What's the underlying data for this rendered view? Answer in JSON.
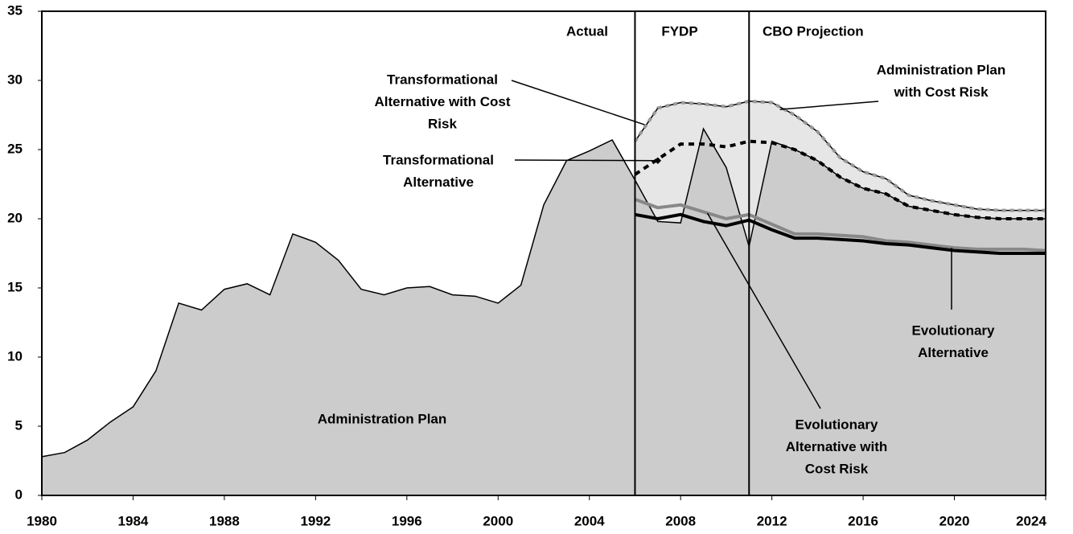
{
  "chart_data": {
    "type": "area-line",
    "x": [
      1980,
      1981,
      1982,
      1983,
      1984,
      1985,
      1986,
      1987,
      1988,
      1989,
      1990,
      1991,
      1992,
      1993,
      1994,
      1995,
      1996,
      1997,
      1998,
      1999,
      2000,
      2001,
      2002,
      2003,
      2004,
      2005,
      2006,
      2007,
      2008,
      2009,
      2010,
      2011,
      2012,
      2013,
      2014,
      2015,
      2016,
      2017,
      2018,
      2019,
      2020,
      2021,
      2022,
      2023,
      2024
    ],
    "series": [
      {
        "name": "Administration Plan",
        "color": "#cccccc",
        "style": "area",
        "values": [
          2.8,
          3.1,
          4.0,
          5.3,
          6.4,
          9.0,
          13.9,
          13.4,
          14.9,
          15.3,
          14.5,
          18.9,
          18.3,
          17.0,
          14.9,
          14.5,
          15.0,
          15.1,
          14.5,
          14.4,
          13.9,
          15.2,
          21.0,
          24.2,
          24.9,
          25.7,
          22.8,
          19.8,
          19.7,
          26.5,
          23.7,
          18.0,
          25.6,
          25.0,
          24.2,
          23.0,
          22.2,
          21.8,
          20.9,
          20.6,
          20.3,
          20.1,
          20.0,
          20.0,
          20.0
        ]
      },
      {
        "name": "Administration Plan with Cost Risk",
        "color": "#999999",
        "style": "dotted-fill",
        "values": [
          null,
          null,
          null,
          null,
          null,
          null,
          null,
          null,
          null,
          null,
          null,
          null,
          null,
          null,
          null,
          null,
          null,
          null,
          null,
          null,
          null,
          null,
          null,
          null,
          null,
          null,
          25.6,
          28.0,
          28.4,
          28.3,
          28.1,
          28.5,
          28.4,
          27.5,
          26.3,
          24.4,
          23.4,
          22.9,
          21.7,
          21.3,
          21.0,
          20.7,
          20.6,
          20.6,
          20.6
        ]
      },
      {
        "name": "Transformational Alternative",
        "color": "#000000",
        "style": "dashed",
        "values": [
          null,
          null,
          null,
          null,
          null,
          null,
          null,
          null,
          null,
          null,
          null,
          null,
          null,
          null,
          null,
          null,
          null,
          null,
          null,
          null,
          null,
          null,
          null,
          null,
          null,
          null,
          23.2,
          24.3,
          25.4,
          25.4,
          25.2,
          25.6,
          25.5,
          25.0,
          24.2,
          23.0,
          22.2,
          21.8,
          20.9,
          20.6,
          20.3,
          20.1,
          20.0,
          20.0,
          20.0
        ]
      },
      {
        "name": "Evolutionary Alternative with Cost Risk",
        "color": "#888888",
        "style": "thick",
        "values": [
          null,
          null,
          null,
          null,
          null,
          null,
          null,
          null,
          null,
          null,
          null,
          null,
          null,
          null,
          null,
          null,
          null,
          null,
          null,
          null,
          null,
          null,
          null,
          null,
          null,
          null,
          21.4,
          20.8,
          21.0,
          20.5,
          20.0,
          20.3,
          19.6,
          18.9,
          18.9,
          18.8,
          18.7,
          18.4,
          18.3,
          18.1,
          17.9,
          17.8,
          17.8,
          17.8,
          17.7
        ]
      },
      {
        "name": "Evolutionary Alternative",
        "color": "#000000",
        "style": "thick",
        "values": [
          null,
          null,
          null,
          null,
          null,
          null,
          null,
          null,
          null,
          null,
          null,
          null,
          null,
          null,
          null,
          null,
          null,
          null,
          null,
          null,
          null,
          null,
          null,
          null,
          null,
          null,
          20.3,
          20.0,
          20.3,
          19.8,
          19.5,
          19.9,
          19.2,
          18.6,
          18.6,
          18.5,
          18.4,
          18.2,
          18.1,
          17.9,
          17.7,
          17.6,
          17.5,
          17.5,
          17.5
        ]
      }
    ],
    "xlim": [
      1980,
      2024
    ],
    "xticks": [
      1980,
      1984,
      1988,
      1992,
      1996,
      2000,
      2004,
      2008,
      2012,
      2016,
      2020,
      2024
    ],
    "ylim": [
      0,
      35
    ],
    "yticks": [
      0,
      5,
      10,
      15,
      20,
      25,
      30,
      35
    ],
    "dividers": [
      2006,
      2011
    ],
    "periods": [
      "Actual",
      "FYDP",
      "CBO Projection"
    ],
    "annotations": [
      {
        "lines": [
          "Transformational",
          "Alternative with Cost",
          "Risk"
        ]
      },
      {
        "lines": [
          "Transformational",
          "Alternative"
        ]
      },
      {
        "lines": [
          "Administration Plan",
          "with Cost Risk"
        ]
      },
      {
        "lines": [
          "Evolutionary",
          "Alternative with",
          "Cost Risk"
        ]
      },
      {
        "lines": [
          "Evolutionary",
          "Alternative"
        ]
      },
      {
        "lines": [
          "Administration Plan"
        ]
      }
    ]
  }
}
